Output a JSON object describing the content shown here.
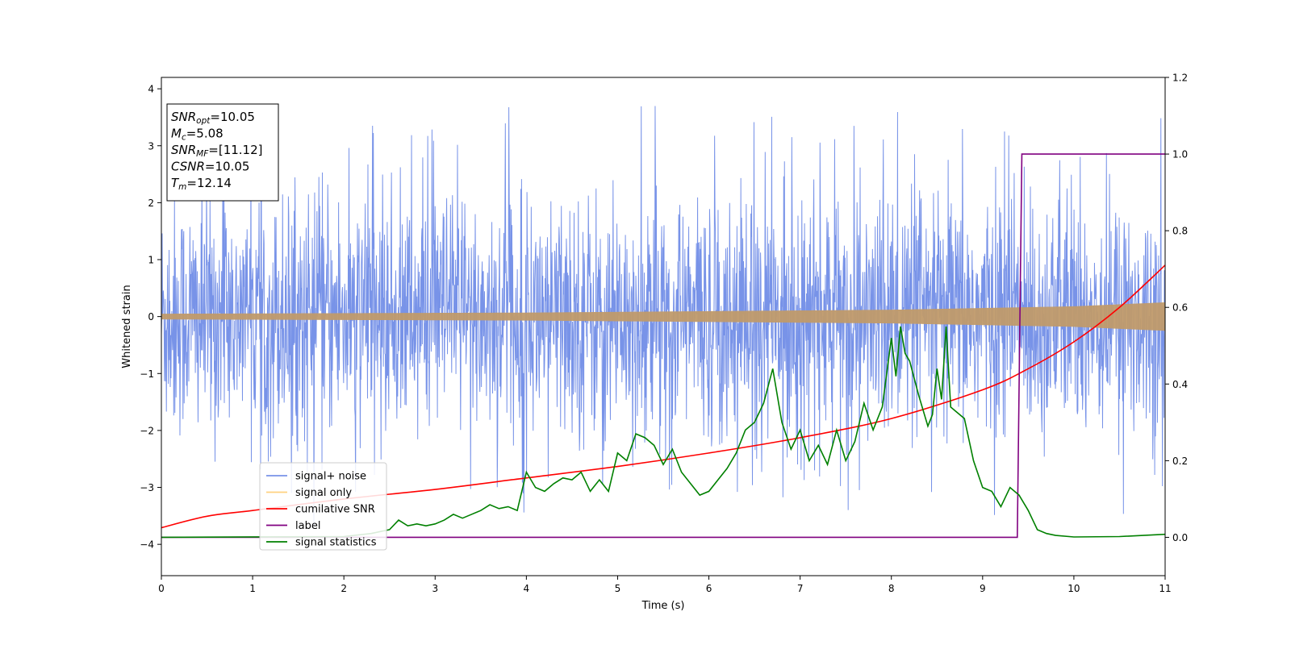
{
  "chart_data": {
    "type": "line",
    "xlabel": "Time (s)",
    "ylabel": "Whitened strain",
    "xlim": [
      0,
      11
    ],
    "ylim": [
      -4.55,
      4.2
    ],
    "y2lim": [
      -0.1,
      1.2
    ],
    "xticks": [
      0,
      1,
      2,
      3,
      4,
      5,
      6,
      7,
      8,
      9,
      10,
      11
    ],
    "yticks": [
      -4,
      -3,
      -2,
      -1,
      0,
      1,
      2,
      3,
      4
    ],
    "y2ticks": [
      0.0,
      0.2,
      0.4,
      0.6,
      0.8,
      1.0,
      1.2
    ],
    "info_box": [
      {
        "sym": "SNR",
        "sub": "opt",
        "text": "=10.05"
      },
      {
        "sym": "M",
        "sub": "c",
        "text": "=5.08"
      },
      {
        "sym": "SNR",
        "sub": "MF",
        "text": "=[11.12]"
      },
      {
        "sym": "CSNR",
        "sub": "",
        "text": "=10.05"
      },
      {
        "sym": "T",
        "sub": "m",
        "text": "=12.14"
      }
    ],
    "legend_position": "lower-left",
    "legend": [
      {
        "label": "signal+ noise",
        "color": "#7893e8"
      },
      {
        "label": "signal only",
        "color": "#ffd27f"
      },
      {
        "label": "cumilative SNR",
        "color": "#ff0000"
      },
      {
        "label": "label",
        "color": "#800080"
      },
      {
        "label": "signal statistics",
        "color": "#008000"
      }
    ],
    "series": [
      {
        "name": "signal+ noise",
        "axis": "left",
        "color": "#7893e8",
        "noise_std": 1.0,
        "spike_max": 3.8,
        "spike_min": -4.15
      },
      {
        "name": "signal only",
        "axis": "left",
        "color": "#c09a6a",
        "envelope": {
          "x": [
            0,
            4,
            8,
            10,
            11
          ],
          "amplitude": [
            0.05,
            0.07,
            0.12,
            0.18,
            0.25
          ]
        }
      },
      {
        "name": "cumilative SNR",
        "axis": "right",
        "color": "#ff0000",
        "x": [
          0,
          0.5,
          1,
          2,
          3,
          4,
          5,
          6,
          7,
          8,
          9,
          9.5,
          10,
          10.5,
          11
        ],
        "y": [
          0.025,
          0.055,
          0.07,
          0.1,
          0.125,
          0.155,
          0.185,
          0.22,
          0.26,
          0.31,
          0.385,
          0.44,
          0.51,
          0.6,
          0.71
        ]
      },
      {
        "name": "label",
        "axis": "right",
        "color": "#800080",
        "x": [
          0,
          9.38,
          9.43,
          11
        ],
        "y": [
          0.0,
          0.0,
          1.0,
          1.0
        ]
      },
      {
        "name": "signal statistics",
        "axis": "right",
        "color": "#008000",
        "x": [
          0,
          2,
          2.3,
          2.5,
          2.6,
          2.7,
          2.8,
          2.9,
          3.0,
          3.1,
          3.2,
          3.3,
          3.4,
          3.5,
          3.6,
          3.7,
          3.8,
          3.9,
          4.0,
          4.1,
          4.2,
          4.3,
          4.4,
          4.5,
          4.6,
          4.7,
          4.8,
          4.9,
          5.0,
          5.1,
          5.2,
          5.3,
          5.4,
          5.5,
          5.6,
          5.7,
          5.8,
          5.9,
          6.0,
          6.1,
          6.2,
          6.3,
          6.4,
          6.5,
          6.6,
          6.7,
          6.8,
          6.9,
          7.0,
          7.1,
          7.2,
          7.3,
          7.4,
          7.5,
          7.6,
          7.7,
          7.8,
          7.9,
          8.0,
          8.05,
          8.1,
          8.15,
          8.2,
          8.3,
          8.4,
          8.45,
          8.5,
          8.55,
          8.6,
          8.65,
          8.7,
          8.8,
          8.9,
          9.0,
          9.1,
          9.2,
          9.3,
          9.4,
          9.5,
          9.6,
          9.7,
          9.8,
          10.0,
          10.5,
          11.0
        ],
        "y": [
          0.0,
          0.002,
          0.01,
          0.02,
          0.045,
          0.03,
          0.035,
          0.03,
          0.035,
          0.045,
          0.06,
          0.05,
          0.06,
          0.07,
          0.085,
          0.075,
          0.08,
          0.07,
          0.17,
          0.13,
          0.12,
          0.14,
          0.155,
          0.15,
          0.17,
          0.12,
          0.15,
          0.12,
          0.22,
          0.2,
          0.27,
          0.26,
          0.24,
          0.19,
          0.23,
          0.17,
          0.14,
          0.11,
          0.12,
          0.15,
          0.18,
          0.22,
          0.28,
          0.3,
          0.35,
          0.44,
          0.3,
          0.23,
          0.28,
          0.2,
          0.24,
          0.19,
          0.28,
          0.2,
          0.25,
          0.35,
          0.28,
          0.34,
          0.52,
          0.42,
          0.55,
          0.48,
          0.46,
          0.37,
          0.29,
          0.32,
          0.44,
          0.36,
          0.55,
          0.34,
          0.33,
          0.31,
          0.2,
          0.13,
          0.12,
          0.08,
          0.13,
          0.11,
          0.07,
          0.02,
          0.01,
          0.005,
          0.001,
          0.002,
          0.008
        ]
      }
    ]
  }
}
